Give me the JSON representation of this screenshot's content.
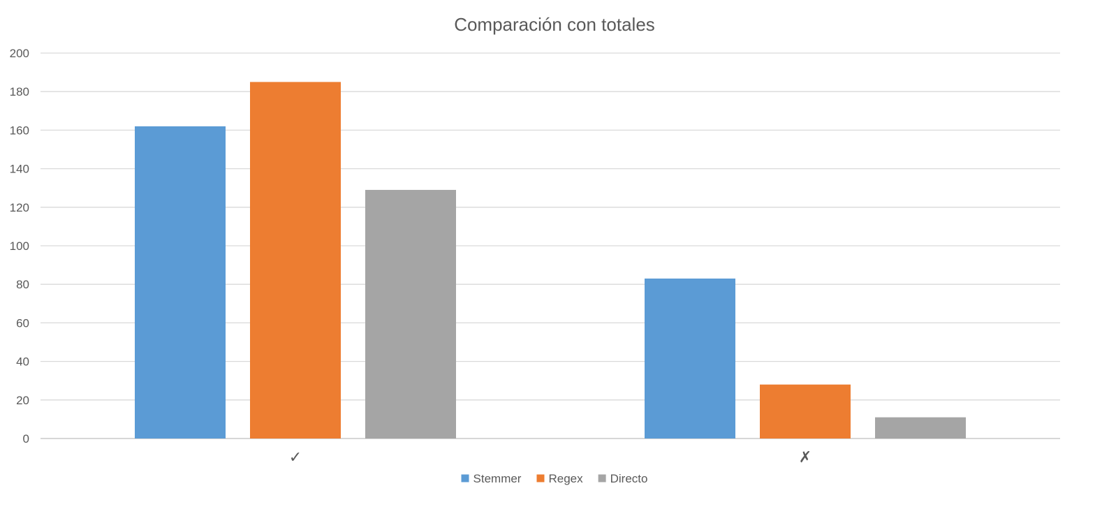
{
  "chart_data": {
    "type": "bar",
    "title": "Comparación con totales",
    "xlabel": "",
    "ylabel": "",
    "ylim": [
      0,
      200
    ],
    "yticks": [
      0,
      20,
      40,
      60,
      80,
      100,
      120,
      140,
      160,
      180,
      200
    ],
    "grid": true,
    "legend_position": "bottom",
    "categories": [
      "✓",
      "✗"
    ],
    "series": [
      {
        "name": "Stemmer",
        "color": "#5b9bd5",
        "values": [
          162,
          83
        ]
      },
      {
        "name": "Regex",
        "color": "#ed7d31",
        "values": [
          185,
          28
        ]
      },
      {
        "name": "Directo",
        "color": "#a5a5a5",
        "values": [
          129,
          11
        ]
      }
    ]
  }
}
